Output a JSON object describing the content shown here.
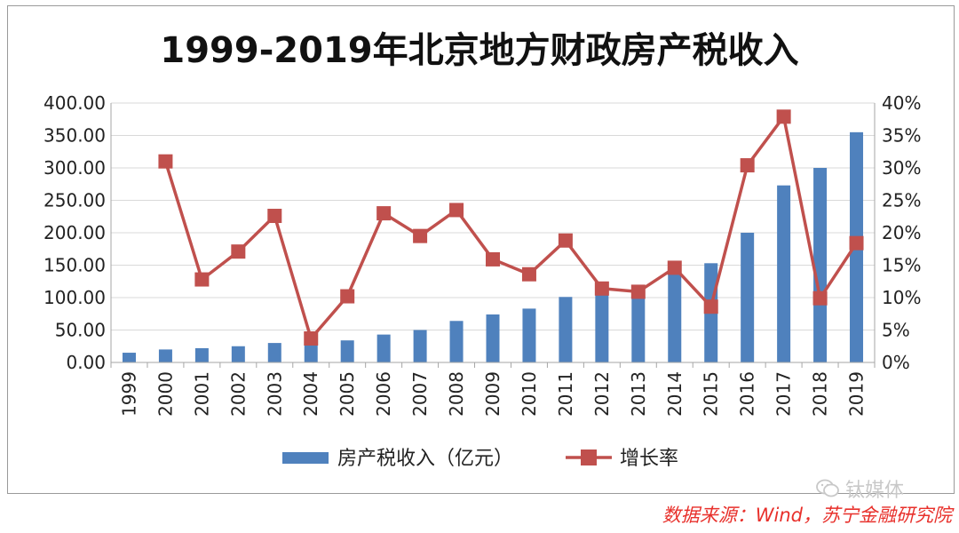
{
  "chart_data": {
    "type": "bar+line",
    "title": "1999-2019年北京地方财政房产税收入",
    "categories": [
      "1999",
      "2000",
      "2001",
      "2002",
      "2003",
      "2004",
      "2005",
      "2006",
      "2007",
      "2008",
      "2009",
      "2010",
      "2011",
      "2012",
      "2013",
      "2014",
      "2015",
      "2016",
      "2017",
      "2018",
      "2019"
    ],
    "series": [
      {
        "name": "房产税收入（亿元）",
        "type": "bar",
        "axis": "left",
        "color": "#4f81bd",
        "values": [
          15,
          20,
          22,
          25,
          30,
          30,
          34,
          43,
          50,
          64,
          74,
          83,
          101,
          112,
          104,
          140,
          153,
          200,
          273,
          300,
          355
        ]
      },
      {
        "name": "增长率",
        "type": "line",
        "axis": "right",
        "unit": "%",
        "color": "#c0504d",
        "values": [
          null,
          31.0,
          12.8,
          17.1,
          22.6,
          3.7,
          10.2,
          23.0,
          19.5,
          23.5,
          15.9,
          13.6,
          18.8,
          11.4,
          10.9,
          14.6,
          8.6,
          30.4,
          37.9,
          9.9,
          18.4
        ]
      }
    ],
    "y_left": {
      "min": 0,
      "max": 400,
      "ticks": [
        "0.00",
        "50.00",
        "100.00",
        "150.00",
        "200.00",
        "250.00",
        "300.00",
        "350.00",
        "400.00"
      ]
    },
    "y_right": {
      "min": 0,
      "max": 40,
      "ticks": [
        "0%",
        "5%",
        "10%",
        "15%",
        "20%",
        "25%",
        "30%",
        "35%",
        "40%"
      ]
    },
    "grid": "horizontal",
    "legend_position": "bottom"
  },
  "watermark": {
    "text": "钛媒体",
    "icon": "wechat-icon"
  },
  "source_note": "数据来源：Wind，苏宁金融研究院"
}
